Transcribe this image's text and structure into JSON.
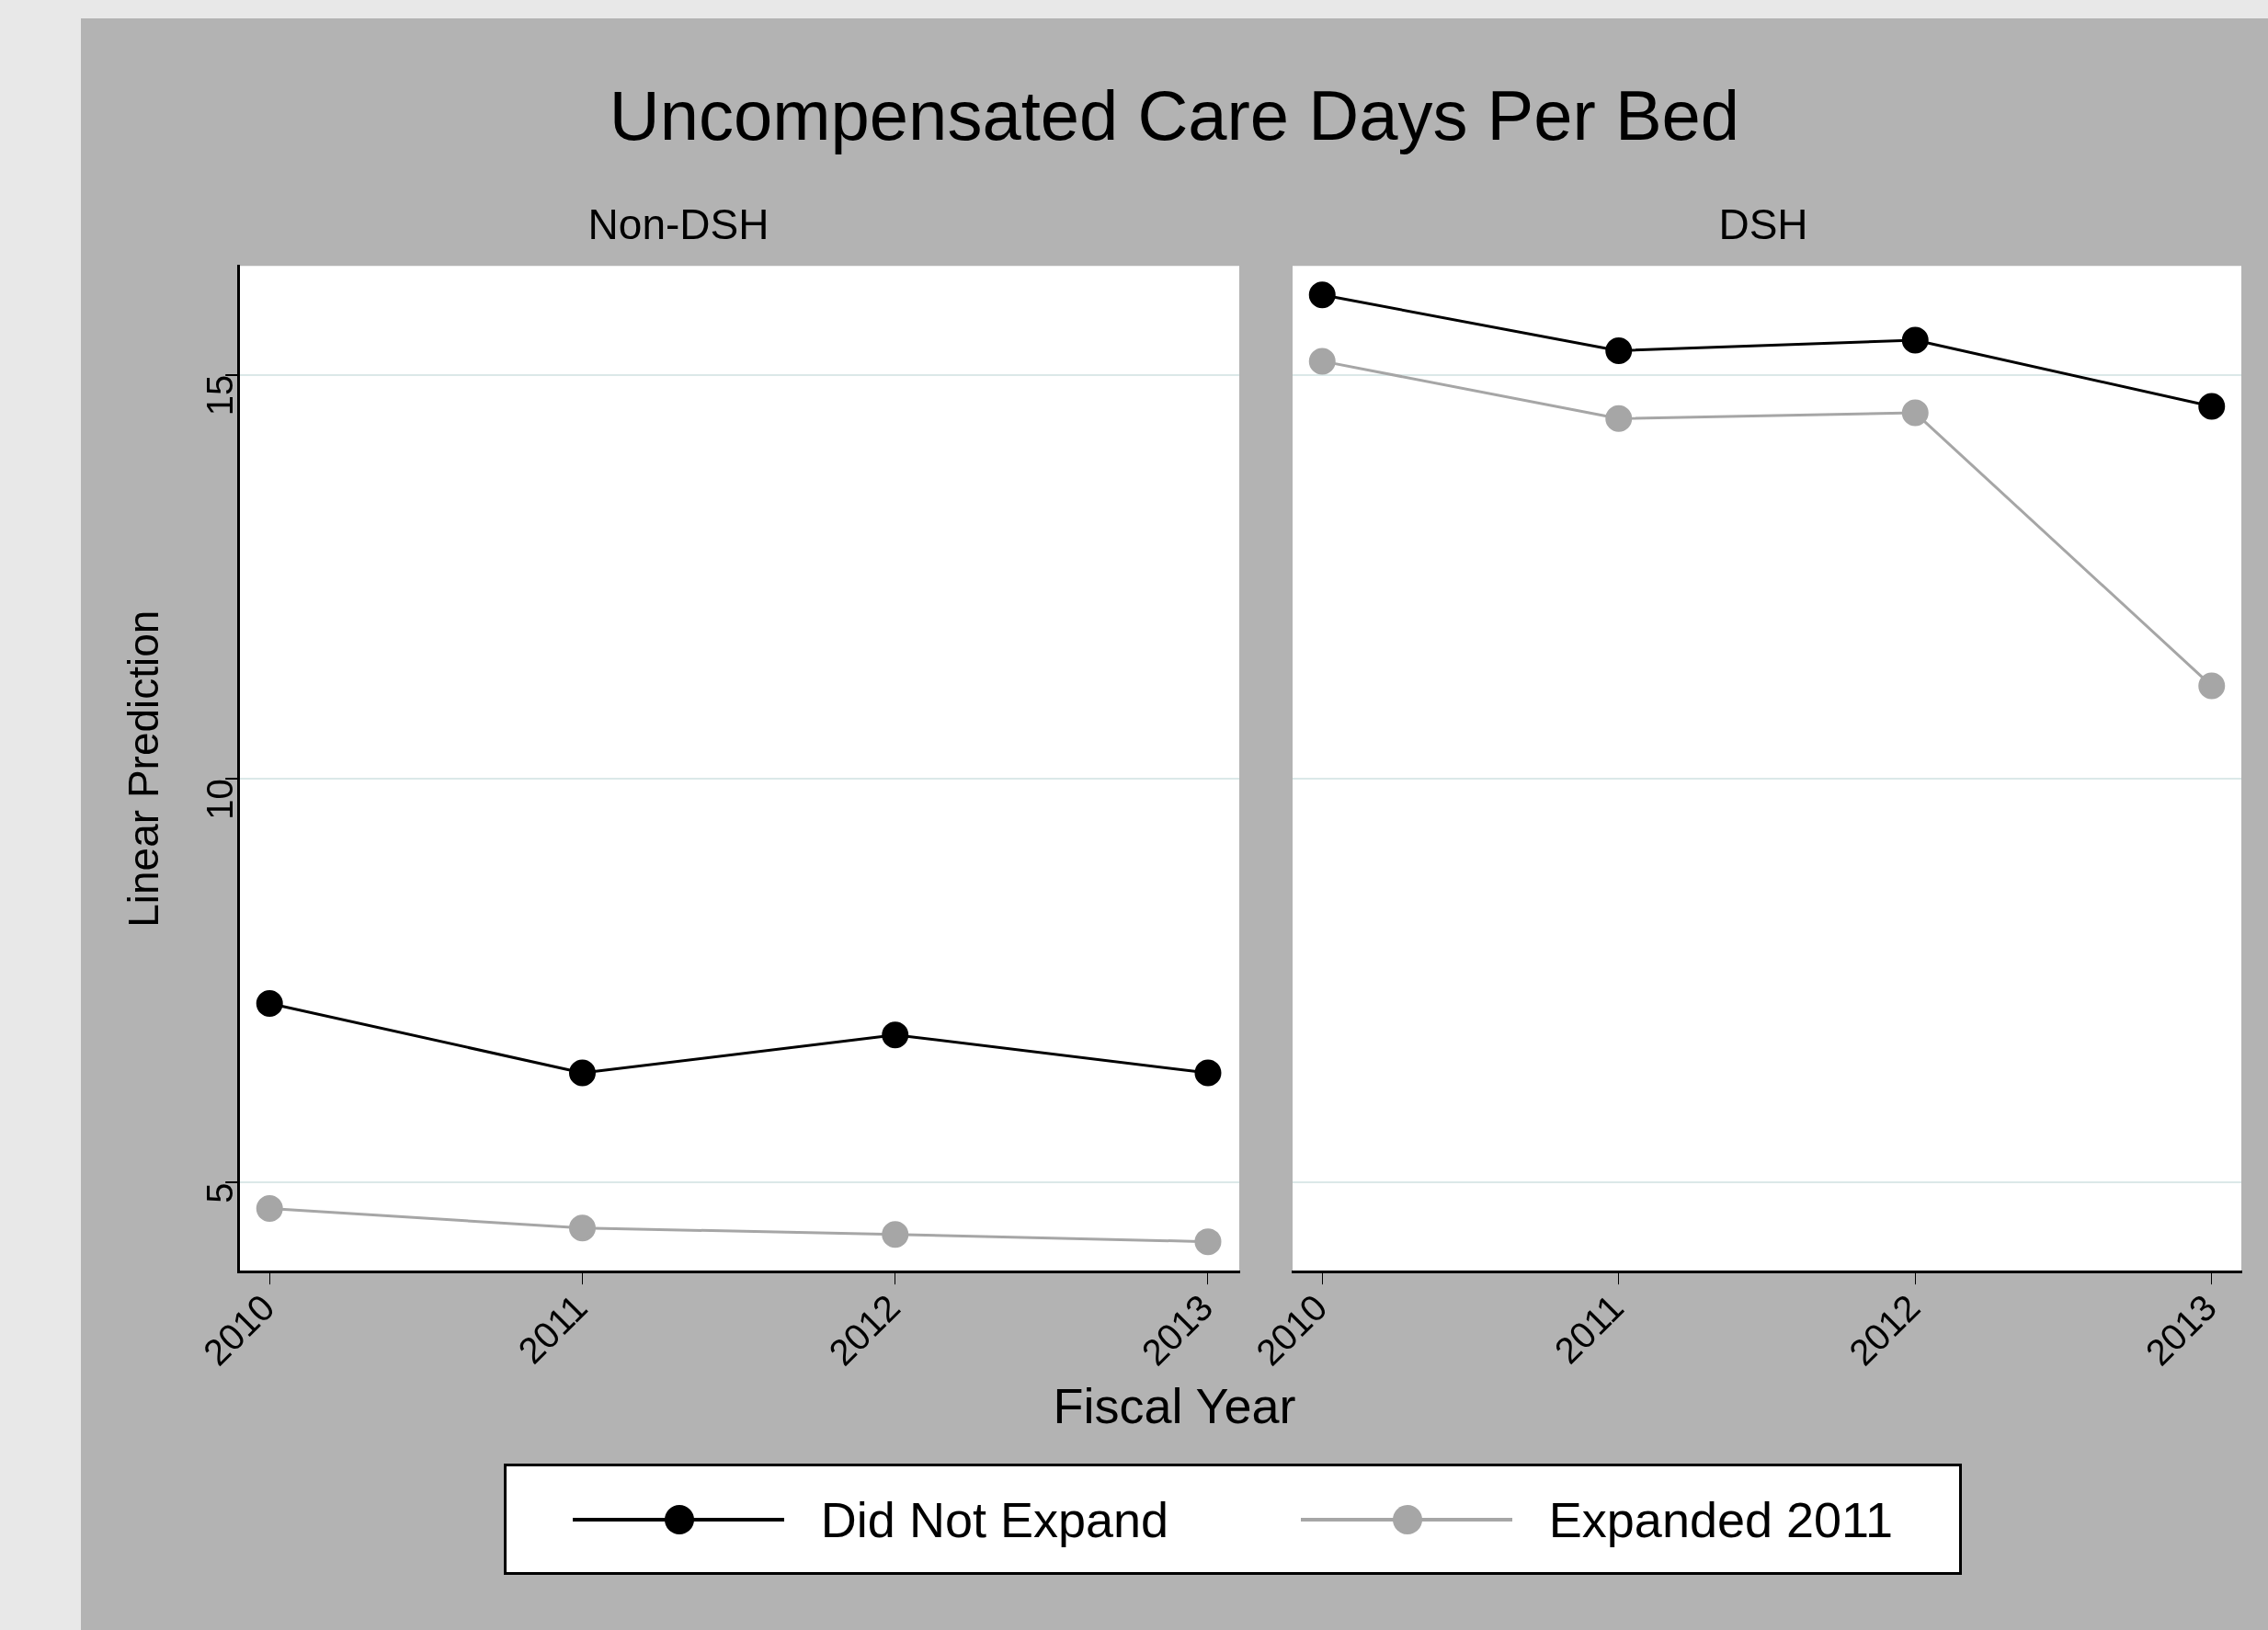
{
  "chart_data": [
    {
      "type": "line",
      "title": "Uncompensated Care Days Per Bed",
      "subtitle": "Non-DSH",
      "xlabel": "Fiscal Year",
      "ylabel": "Linear Prediction",
      "x": [
        2010,
        2011,
        2012,
        2013
      ],
      "series": [
        {
          "name": "Did Not Expand",
          "color": "#000000",
          "values": [
            7.22,
            6.36,
            6.83,
            6.36
          ]
        },
        {
          "name": "Expanded 2011",
          "color": "#a6a6a6",
          "values": [
            4.68,
            4.44,
            4.36,
            4.27
          ]
        }
      ],
      "xlim": [
        2009.9,
        2013.1
      ],
      "xticks": [
        2010,
        2011,
        2012,
        2013
      ],
      "ylim": [
        3.9,
        16.35
      ],
      "yticks": [
        5,
        10,
        15
      ],
      "grid": "y",
      "legend": "bottom",
      "marker": "circle"
    },
    {
      "type": "line",
      "subtitle": "DSH",
      "x": [
        2010,
        2011,
        2012,
        2013
      ],
      "series": [
        {
          "color": "#000000",
          "values": [
            15.99,
            15.3,
            15.43,
            14.61
          ]
        },
        {
          "color": "#a6a6a6",
          "values": [
            15.17,
            14.46,
            14.53,
            11.15
          ]
        }
      ],
      "xlim": [
        2009.9,
        2013.1
      ],
      "xticks": [
        2010,
        2011,
        2012,
        2013
      ],
      "ylim": [
        3.9,
        16.35
      ],
      "yticks": [
        5,
        10,
        15
      ],
      "grid": "y",
      "tick_labels": "x",
      "marker": "circle"
    }
  ]
}
